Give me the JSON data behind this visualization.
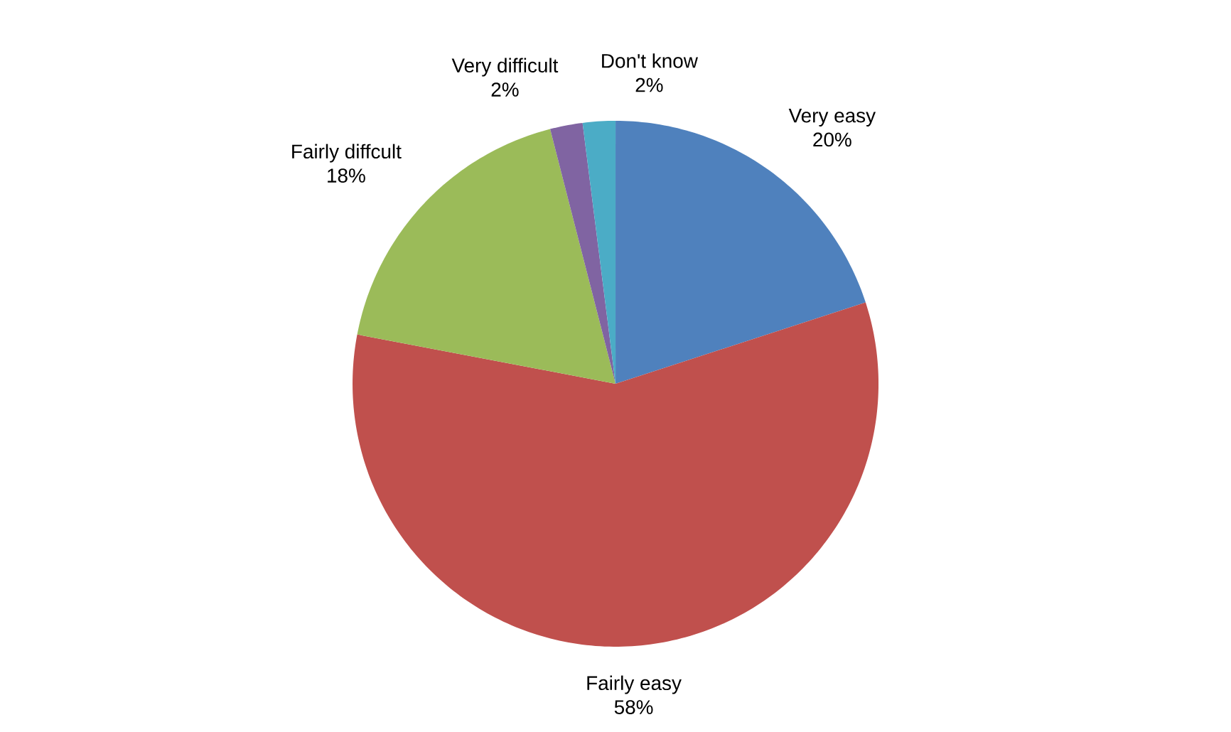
{
  "chart_data": {
    "type": "pie",
    "categories": [
      "Very easy",
      "Fairly easy",
      "Fairly diffcult",
      "Very difficult",
      "Don't know"
    ],
    "values": [
      20,
      58,
      18,
      2,
      2
    ],
    "value_labels": [
      "20%",
      "58%",
      "18%",
      "2%",
      "2%"
    ],
    "colors": [
      "#4f81bd",
      "#c0504d",
      "#9bbb59",
      "#8064a2",
      "#4bacc6"
    ]
  }
}
